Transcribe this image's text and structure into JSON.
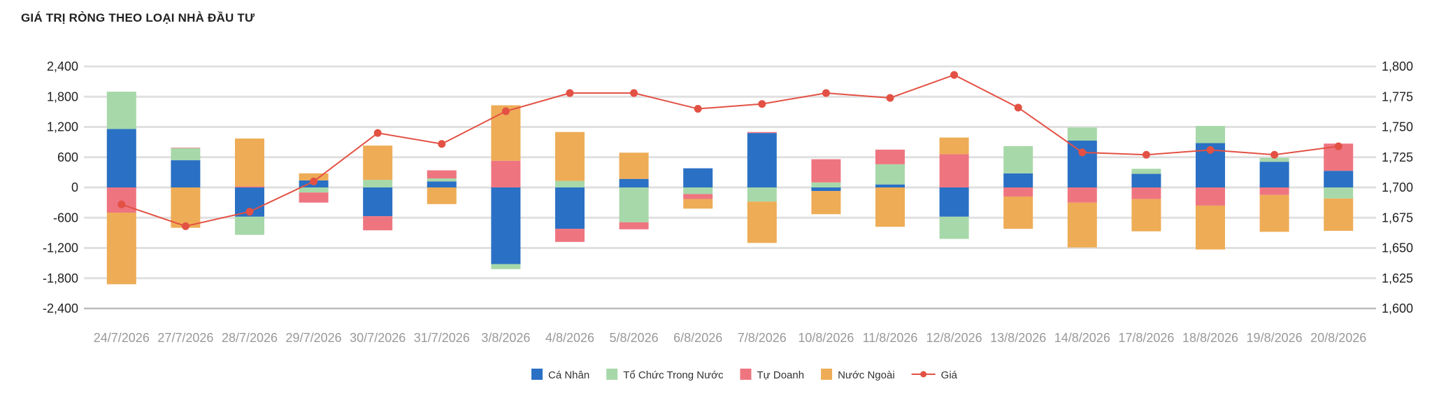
{
  "title": "GIÁ TRỊ RÒNG THEO LOẠI NHÀ ĐẦU TƯ",
  "chart_data": {
    "type": "bar",
    "stacked": true,
    "title": "GIÁ TRỊ RÒNG THEO LOẠI NHÀ ĐẦU TƯ",
    "categories": [
      "24/7/2026",
      "27/7/2026",
      "28/7/2026",
      "29/7/2026",
      "30/7/2026",
      "31/7/2026",
      "3/8/2026",
      "4/8/2026",
      "5/8/2026",
      "6/8/2026",
      "7/8/2026",
      "10/8/2026",
      "11/8/2026",
      "12/8/2026",
      "13/8/2026",
      "14/8/2026",
      "17/8/2026",
      "18/8/2026",
      "19/8/2026",
      "20/8/2026"
    ],
    "y_left": {
      "ticks": [
        2400,
        1800,
        1200,
        600,
        0,
        -600,
        -1200,
        -1800,
        -2400
      ],
      "tick_labels": [
        "2,400",
        "1,800",
        "1,200",
        "600",
        "0",
        "-600",
        "-1,200",
        "-1,800",
        "-2,400"
      ],
      "ylim": [
        -2400,
        2400
      ]
    },
    "y_right": {
      "ticks": [
        1800,
        1775,
        1750,
        1725,
        1700,
        1675,
        1650,
        1625,
        1600
      ],
      "tick_labels": [
        "1,800",
        "1,775",
        "1,750",
        "1,725",
        "1,700",
        "1,675",
        "1,650",
        "1,625",
        "1,600"
      ],
      "ylim": [
        1600,
        1800
      ]
    },
    "series": [
      {
        "name": "Cá Nhân",
        "color": "#2a70c4",
        "kind": "bar",
        "values": [
          1160,
          540,
          -580,
          140,
          -570,
          120,
          -1520,
          -820,
          170,
          380,
          1080,
          -70,
          60,
          -580,
          280,
          930,
          270,
          880,
          510,
          330
        ]
      },
      {
        "name": "Tổ Chức Trong Nước",
        "color": "#a7d8a9",
        "kind": "bar",
        "values": [
          740,
          240,
          -360,
          -100,
          150,
          60,
          -100,
          130,
          -690,
          -130,
          -280,
          100,
          400,
          -440,
          540,
          260,
          100,
          340,
          80,
          -220
        ]
      },
      {
        "name": "Tự Doanh",
        "color": "#ee7580",
        "kind": "bar",
        "values": [
          -500,
          10,
          20,
          -200,
          -280,
          160,
          530,
          -260,
          -140,
          -100,
          20,
          460,
          290,
          660,
          -180,
          -300,
          -230,
          -360,
          -150,
          540
        ]
      },
      {
        "name": "Nước Ngoài",
        "color": "#eeac56",
        "kind": "bar",
        "values": [
          -1420,
          -800,
          950,
          140,
          680,
          -330,
          1100,
          970,
          520,
          -190,
          -820,
          -460,
          -780,
          330,
          -640,
          -890,
          -640,
          -870,
          -730,
          -640
        ]
      },
      {
        "name": "Giá",
        "color": "#e35144",
        "kind": "line",
        "axis": "right",
        "values": [
          1686,
          1668,
          1680,
          1705,
          1745,
          1736,
          1763,
          1778,
          1778,
          1765,
          1769,
          1778,
          1774,
          1793,
          1766,
          1729,
          1727,
          1731,
          1727,
          1734
        ]
      }
    ],
    "grid": true,
    "legend": "bottom-center"
  }
}
